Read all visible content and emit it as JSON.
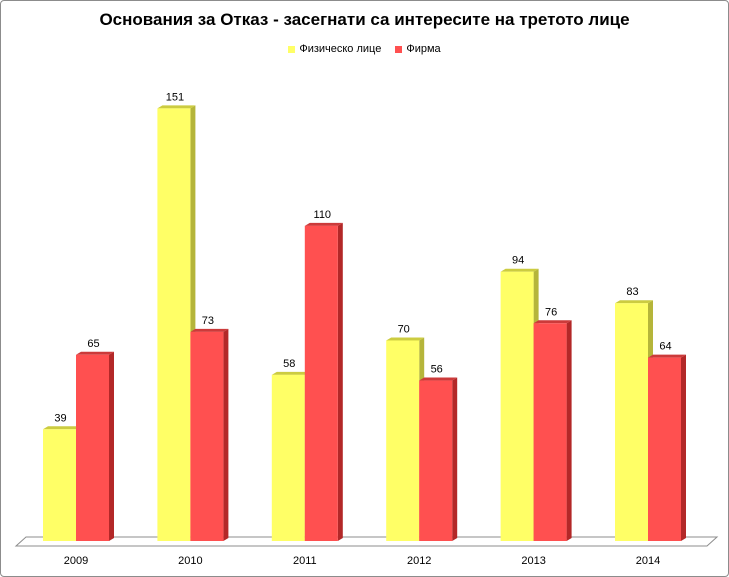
{
  "chart_data": {
    "type": "bar",
    "title": "Основания за Отказ - засегнати са интересите на третото лице",
    "categories": [
      "2009",
      "2010",
      "2011",
      "2012",
      "2013",
      "2014"
    ],
    "series": [
      {
        "name": "Физическо лице",
        "values": [
          39,
          151,
          58,
          70,
          94,
          83
        ],
        "color": "#ffff66",
        "side_color": "#b5b53a",
        "top_color": "#cccc40"
      },
      {
        "name": "Фирма",
        "values": [
          65,
          73,
          110,
          56,
          76,
          64
        ],
        "color": "#ff5050",
        "side_color": "#b32828",
        "top_color": "#cc3a3a"
      }
    ],
    "ylim": [
      0,
      160
    ],
    "grid": false,
    "legend_position": "top",
    "data_labels": true
  }
}
